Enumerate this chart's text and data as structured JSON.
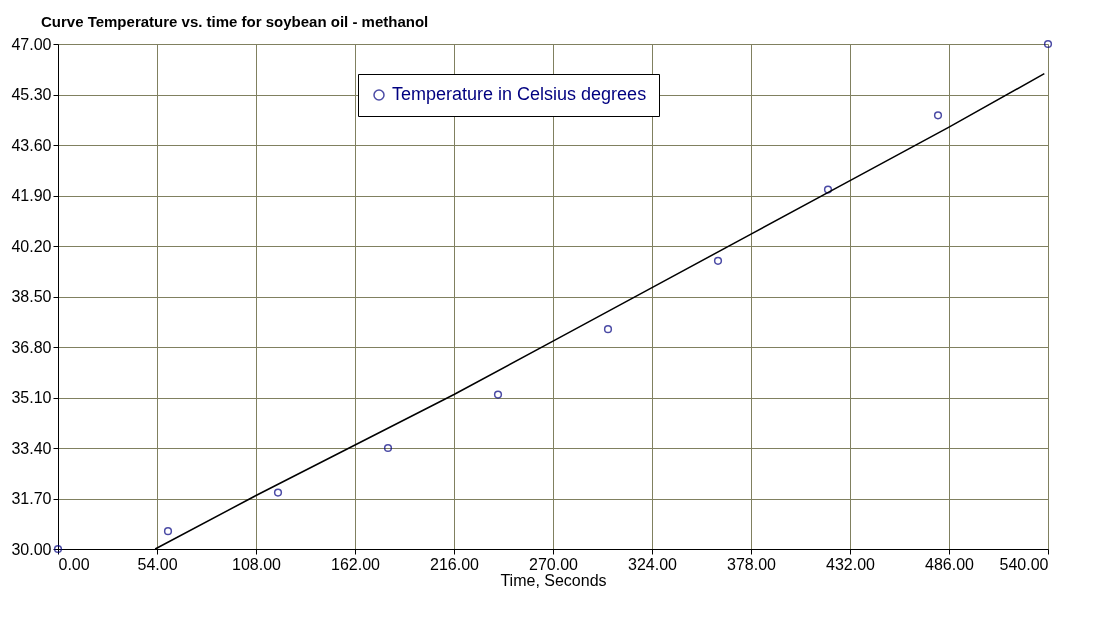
{
  "chart_data": {
    "type": "scatter",
    "title": "Curve Temperature vs. time for soybean oil - methanol",
    "xlabel": "Time, Seconds",
    "xlim": [
      0,
      540
    ],
    "ylim": [
      30,
      47
    ],
    "xticks": [
      {
        "value": 0,
        "label": "0.00"
      },
      {
        "value": 54,
        "label": "54.00"
      },
      {
        "value": 108,
        "label": "108.00"
      },
      {
        "value": 162,
        "label": "162.00"
      },
      {
        "value": 216,
        "label": "216.00"
      },
      {
        "value": 270,
        "label": "270.00"
      },
      {
        "value": 324,
        "label": "324.00"
      },
      {
        "value": 378,
        "label": "378.00"
      },
      {
        "value": 432,
        "label": "432.00"
      },
      {
        "value": 486,
        "label": "486.00"
      },
      {
        "value": 540,
        "label": "540.00"
      }
    ],
    "yticks": [
      {
        "value": 30,
        "label": "30.00"
      },
      {
        "value": 31.7,
        "label": "31.70"
      },
      {
        "value": 33.4,
        "label": "33.40"
      },
      {
        "value": 35.1,
        "label": "35.10"
      },
      {
        "value": 36.8,
        "label": "36.80"
      },
      {
        "value": 38.5,
        "label": "38.50"
      },
      {
        "value": 40.2,
        "label": "40.20"
      },
      {
        "value": 41.9,
        "label": "41.90"
      },
      {
        "value": 43.6,
        "label": "43.60"
      },
      {
        "value": 45.3,
        "label": "45.30"
      },
      {
        "value": 47,
        "label": "47.00"
      }
    ],
    "grid": true,
    "legend": "top",
    "series": [
      {
        "name": "Temperature in Celsius degrees",
        "marker": "circle",
        "color": "#000080",
        "x": [
          0,
          60,
          120,
          180,
          240,
          300,
          360,
          420,
          480,
          540
        ],
        "values": [
          30.0,
          30.6,
          31.9,
          33.4,
          35.2,
          37.4,
          39.7,
          42.1,
          44.6,
          47.0
        ]
      },
      {
        "type": "line",
        "marker": "none",
        "color": "#000000",
        "line_style": "solid",
        "x": [
          53,
          108,
          162,
          216,
          270,
          324,
          378,
          432,
          486,
          538
        ],
        "values": [
          30.0,
          31.8,
          33.5,
          35.2,
          37.0,
          38.8,
          40.6,
          42.4,
          44.2,
          46.0
        ]
      }
    ]
  }
}
